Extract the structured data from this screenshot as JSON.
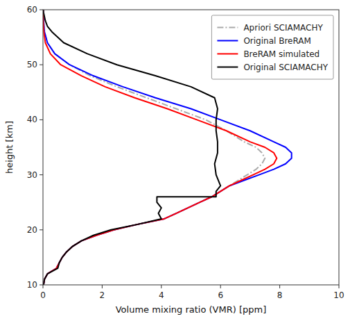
{
  "chart_data": {
    "type": "line",
    "xlabel": "Volume mixing ratio (VMR) [ppm]",
    "ylabel": "height [km]",
    "xlim": [
      0,
      10
    ],
    "ylim": [
      10,
      60
    ],
    "xticks": [
      0,
      2,
      4,
      6,
      8,
      10
    ],
    "yticks": [
      10,
      20,
      30,
      40,
      50,
      60
    ],
    "grid": false,
    "legend": "upper right",
    "series": [
      {
        "name": "Apriori SCIAMACHY",
        "color": "#aaaaaa",
        "line_style": "dashdot",
        "x": [
          0.02,
          0.05,
          0.15,
          0.45,
          0.55,
          0.65,
          0.8,
          1.0,
          1.3,
          1.8,
          2.4,
          3.2,
          4.1,
          4.5,
          4.9,
          5.3,
          5.7,
          6.0,
          6.3,
          6.6,
          6.9,
          7.2,
          7.4,
          7.5,
          7.4,
          7.2,
          6.8,
          6.2,
          5.5,
          4.5,
          3.5,
          2.5,
          1.6,
          0.9,
          0.4,
          0.15,
          0.05,
          0.02,
          0.01
        ],
        "values": [
          10,
          11,
          12,
          13,
          14,
          15,
          16,
          17,
          18,
          19,
          20,
          21,
          22,
          23,
          24,
          25,
          26,
          27,
          28,
          29,
          30,
          31,
          32,
          33,
          34,
          35,
          36,
          38,
          40,
          42,
          44,
          46,
          48,
          50,
          52,
          54,
          56,
          58,
          60
        ]
      },
      {
        "name": "Original BreRAM",
        "color": "blue",
        "line_style": "solid",
        "x": [
          0.02,
          0.05,
          0.15,
          0.45,
          0.55,
          0.65,
          0.8,
          1.0,
          1.3,
          1.8,
          2.4,
          3.2,
          4.1,
          4.5,
          4.9,
          5.3,
          5.7,
          6.0,
          6.3,
          6.8,
          7.3,
          7.8,
          8.2,
          8.4,
          8.4,
          8.2,
          7.8,
          7.0,
          6.0,
          5.0,
          3.8,
          2.7,
          1.7,
          0.9,
          0.4,
          0.15,
          0.05,
          0.02,
          0.01
        ],
        "values": [
          10,
          11,
          12,
          13,
          14,
          15,
          16,
          17,
          18,
          19,
          20,
          21,
          22,
          23,
          24,
          25,
          26,
          27,
          28,
          29,
          30,
          31,
          32,
          33,
          34,
          35,
          36,
          38,
          40,
          42,
          44,
          46,
          48,
          50,
          52,
          54,
          56,
          58,
          60
        ]
      },
      {
        "name": "BreRAM simulated",
        "color": "red",
        "line_style": "solid",
        "x": [
          0.02,
          0.05,
          0.15,
          0.45,
          0.55,
          0.65,
          0.8,
          1.0,
          1.3,
          1.8,
          2.4,
          3.2,
          4.1,
          4.5,
          4.9,
          5.3,
          5.7,
          6.0,
          6.3,
          6.7,
          7.1,
          7.5,
          7.8,
          7.9,
          7.8,
          7.5,
          7.0,
          6.2,
          5.2,
          4.2,
          3.1,
          2.1,
          1.3,
          0.6,
          0.25,
          0.08,
          0.03,
          0.01,
          0.01
        ],
        "values": [
          10,
          11,
          12,
          13,
          14,
          15,
          16,
          17,
          18,
          19,
          20,
          21,
          22,
          23,
          24,
          25,
          26,
          27,
          28,
          29,
          30,
          31,
          32,
          33,
          34,
          35,
          36,
          38,
          40,
          42,
          44,
          46,
          48,
          50,
          52,
          54,
          56,
          58,
          60
        ]
      },
      {
        "name": "Original SCIAMACHY",
        "color": "black",
        "line_style": "solid",
        "x": [
          0.02,
          0.05,
          0.15,
          0.5,
          0.55,
          0.65,
          0.8,
          1.0,
          1.3,
          1.7,
          2.3,
          3.2,
          4.0,
          3.9,
          4.0,
          3.85,
          3.85,
          5.85,
          5.85,
          6.0,
          5.85,
          5.8,
          5.9,
          5.9,
          5.85,
          5.85,
          5.9,
          5.8,
          5.0,
          3.8,
          2.5,
          1.5,
          0.7,
          0.3,
          0.15,
          0.08,
          0.04,
          0.02,
          0.01
        ],
        "values": [
          10,
          11,
          12,
          13,
          14,
          15,
          16,
          17,
          18,
          19,
          20,
          21,
          22,
          23,
          24,
          25,
          26,
          26,
          27,
          28,
          30,
          32,
          34,
          36,
          38,
          40,
          42,
          44,
          46,
          48,
          50,
          52,
          54,
          56,
          57,
          58,
          59,
          59.5,
          60
        ]
      }
    ]
  }
}
